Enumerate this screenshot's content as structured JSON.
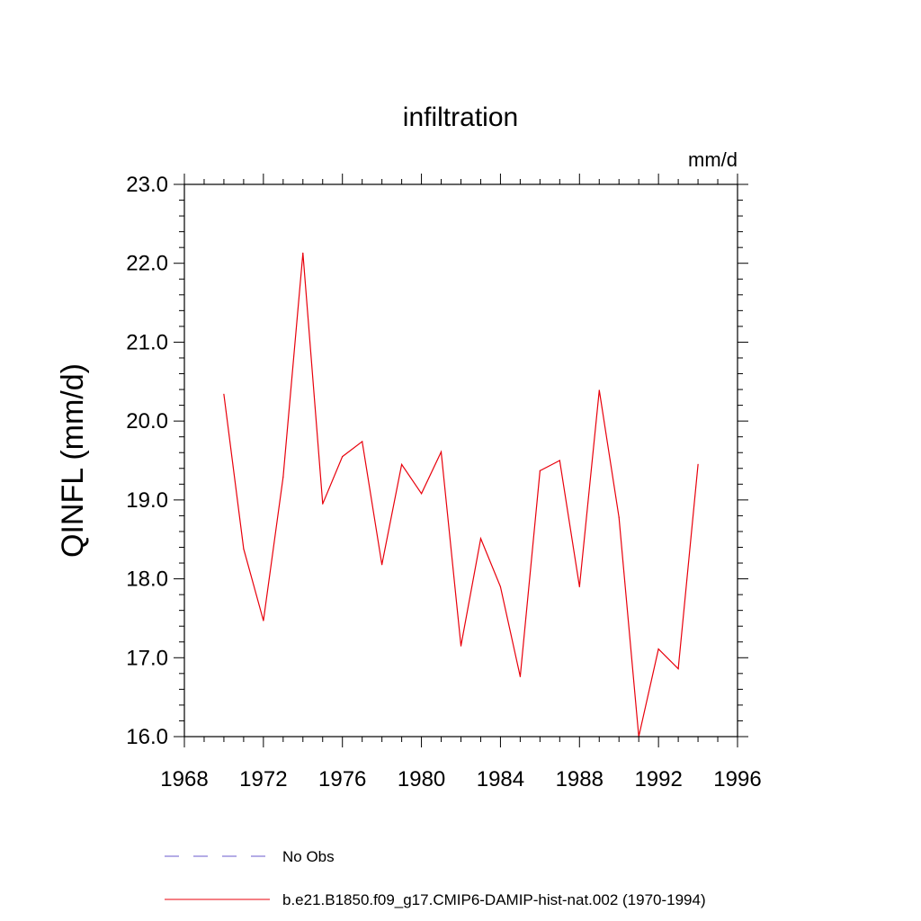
{
  "chart_data": {
    "type": "line",
    "title": "infiltration",
    "units": "mm/d",
    "ylabel": "QINFL  (mm/d)",
    "xlim": [
      1968,
      1996
    ],
    "ylim": [
      16.0,
      23.0
    ],
    "x_ticks": [
      1968,
      1972,
      1976,
      1980,
      1984,
      1988,
      1992,
      1996
    ],
    "y_ticks": [
      "16.0",
      "17.0",
      "18.0",
      "19.0",
      "20.0",
      "21.0",
      "22.0",
      "23.0"
    ],
    "legend": [
      {
        "label": "No Obs",
        "color": "#6a5acd",
        "style": "dashed"
      },
      {
        "label": "b.e21.B1850.f09_g17.CMIP6-DAMIP-hist-nat.002 (1970-1994)",
        "color": "#e8000b",
        "style": "solid"
      }
    ],
    "series": [
      {
        "name": "b.e21.B1850.f09_g17.CMIP6-DAMIP-hist-nat.002 (1970-1994)",
        "color": "#e8000b",
        "x": [
          1970,
          1971,
          1972,
          1973,
          1974,
          1975,
          1976,
          1977,
          1978,
          1979,
          1980,
          1981,
          1982,
          1983,
          1984,
          1985,
          1986,
          1987,
          1988,
          1989,
          1990,
          1991,
          1992,
          1993,
          1994
        ],
        "y": [
          20.34,
          18.38,
          17.47,
          19.29,
          22.13,
          18.95,
          19.55,
          19.74,
          18.18,
          19.45,
          19.08,
          19.61,
          17.15,
          18.51,
          17.9,
          16.76,
          19.37,
          19.5,
          17.9,
          20.39,
          18.78,
          16.0,
          17.11,
          16.86,
          19.45
        ]
      }
    ]
  }
}
